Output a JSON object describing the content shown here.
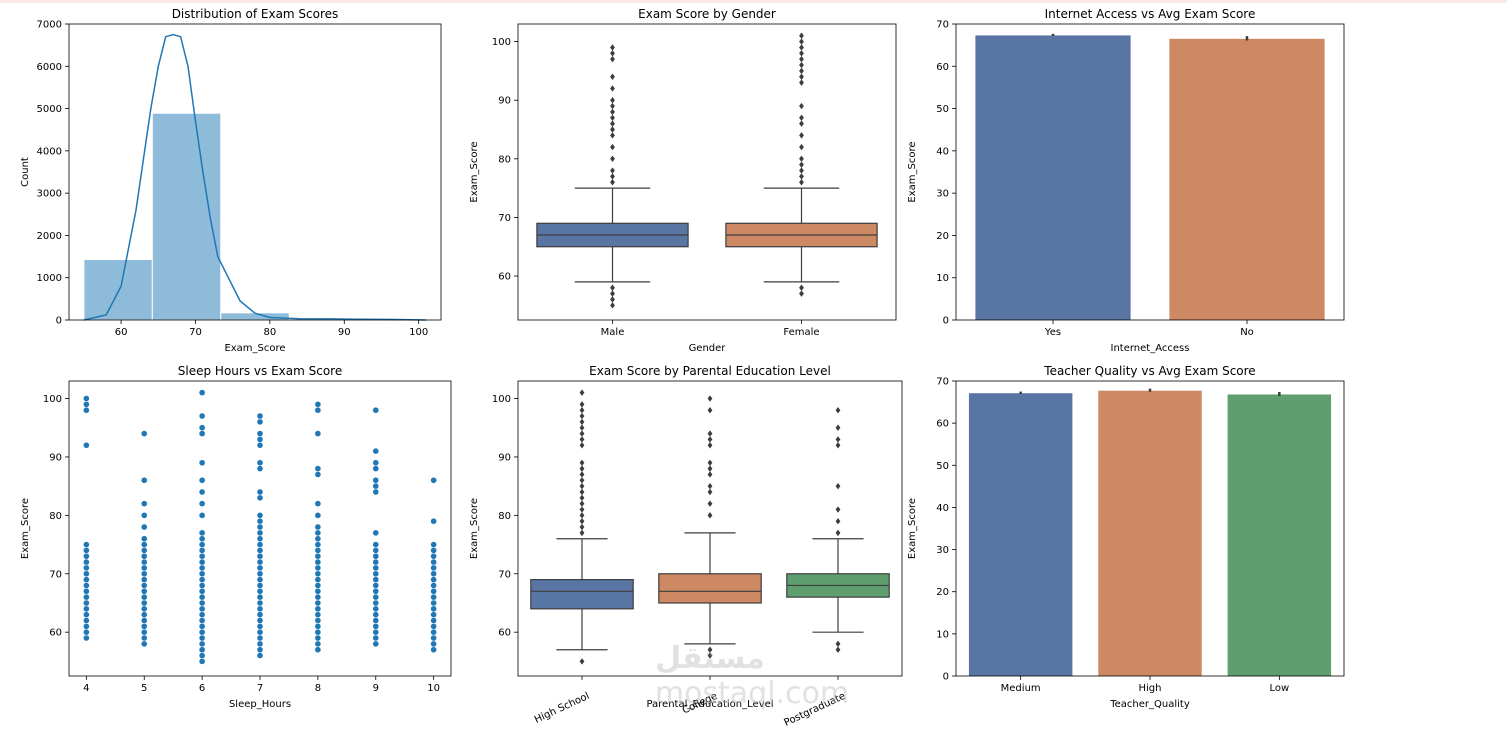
{
  "watermark": {
    "arabic": "مستقل",
    "latin": "mostaql.com"
  },
  "colors": {
    "blue": "#5875a4",
    "orange": "#cc8963",
    "green": "#5f9e6e",
    "hist": "#8fbbda",
    "kde": "#1f77b4",
    "scatter": "#1f77b4",
    "box_line": "#3d3d3d"
  },
  "chart_data": [
    {
      "type": "bar",
      "subtype": "histogram",
      "title": "Distribution of Exam Scores",
      "xlabel": "Exam_Score",
      "ylabel": "Count",
      "xlim": [
        53,
        103
      ],
      "ylim": [
        0,
        7000
      ],
      "xticks": [
        60,
        70,
        80,
        90,
        100
      ],
      "yticks": [
        0,
        1000,
        2000,
        3000,
        4000,
        5000,
        6000,
        7000
      ],
      "bins": [
        {
          "x0": 55,
          "x1": 64.2,
          "count": 1430
        },
        {
          "x0": 64.2,
          "x1": 73.4,
          "count": 4890
        },
        {
          "x0": 73.4,
          "x1": 82.6,
          "count": 170
        },
        {
          "x0": 82.6,
          "x1": 91.8,
          "count": 20
        },
        {
          "x0": 91.8,
          "x1": 101,
          "count": 20
        }
      ],
      "kde": {
        "x": [
          55,
          58,
          60,
          62,
          64,
          65,
          66,
          67,
          68,
          69,
          70,
          71,
          72,
          73,
          74,
          76,
          78,
          80,
          84,
          88,
          92,
          96,
          101
        ],
        "y": [
          0,
          120,
          800,
          2600,
          5000,
          6000,
          6700,
          6750,
          6700,
          6000,
          4700,
          3500,
          2400,
          1500,
          1150,
          450,
          160,
          60,
          30,
          25,
          20,
          15,
          0
        ]
      }
    },
    {
      "type": "box",
      "title": "Exam Score by Gender",
      "xlabel": "Gender",
      "ylabel": "Exam_Score",
      "ylim": [
        52.5,
        103
      ],
      "yticks": [
        60,
        70,
        80,
        90,
        100
      ],
      "categories": [
        "Male",
        "Female"
      ],
      "boxes": [
        {
          "q1": 65,
          "median": 67,
          "q3": 69,
          "whisker_low": 59,
          "whisker_high": 75,
          "outliers": [
            55,
            56,
            57,
            58,
            76,
            77,
            78,
            80,
            82,
            84,
            85,
            86,
            87,
            88,
            89,
            90,
            92,
            94,
            97,
            98,
            99
          ]
        },
        {
          "q1": 65,
          "median": 67,
          "q3": 69,
          "whisker_low": 59,
          "whisker_high": 75,
          "outliers": [
            57,
            58,
            76,
            77,
            78,
            79,
            80,
            82,
            84,
            86,
            87,
            89,
            93,
            94,
            95,
            96,
            97,
            98,
            99,
            100,
            101
          ]
        }
      ]
    },
    {
      "type": "bar",
      "title": "Internet Access vs Avg Exam Score",
      "xlabel": "Internet_Access",
      "ylabel": "Exam_Score",
      "ylim": [
        0,
        70
      ],
      "yticks": [
        0,
        10,
        20,
        30,
        40,
        50,
        60,
        70
      ],
      "categories": [
        "Yes",
        "No"
      ],
      "values": [
        67.3,
        66.5
      ],
      "errors": [
        0.15,
        0.4
      ]
    },
    {
      "type": "scatter",
      "title": "Sleep Hours vs Exam Score",
      "xlabel": "Sleep_Hours",
      "ylabel": "Exam_Score",
      "xlim": [
        3.7,
        10.3
      ],
      "ylim": [
        52.5,
        103
      ],
      "xticks": [
        4,
        5,
        6,
        7,
        8,
        9,
        10
      ],
      "yticks": [
        60,
        70,
        80,
        90,
        100
      ],
      "columns": [
        {
          "x": 4,
          "ymin": 59,
          "ymax": 75,
          "extra": [
            92,
            98,
            99,
            100
          ]
        },
        {
          "x": 5,
          "ymin": 58,
          "ymax": 76,
          "extra": [
            78,
            80,
            82,
            86,
            94
          ]
        },
        {
          "x": 6,
          "ymin": 55,
          "ymax": 77,
          "extra": [
            80,
            82,
            84,
            86,
            89,
            94,
            95,
            97,
            101
          ]
        },
        {
          "x": 7,
          "ymin": 56,
          "ymax": 80,
          "extra": [
            83,
            84,
            88,
            89,
            92,
            93,
            94,
            96,
            97
          ]
        },
        {
          "x": 8,
          "ymin": 57,
          "ymax": 78,
          "extra": [
            80,
            82,
            87,
            88,
            94,
            98,
            99
          ]
        },
        {
          "x": 9,
          "ymin": 58,
          "ymax": 75,
          "extra": [
            77,
            84,
            85,
            86,
            88,
            89,
            91,
            98
          ]
        },
        {
          "x": 10,
          "ymin": 57,
          "ymax": 75,
          "extra": [
            79,
            86
          ]
        }
      ]
    },
    {
      "type": "box",
      "title": "Exam Score by Parental Education Level",
      "xlabel": "Parental_Education_Level",
      "ylabel": "Exam_Score",
      "ylim": [
        52.5,
        103
      ],
      "yticks": [
        60,
        70,
        80,
        90,
        100
      ],
      "categories": [
        "High School",
        "College",
        "Postgraduate"
      ],
      "boxes": [
        {
          "q1": 64,
          "median": 67,
          "q3": 69,
          "whisker_low": 57,
          "whisker_high": 76,
          "outliers": [
            55,
            77,
            78,
            79,
            80,
            81,
            82,
            83,
            84,
            85,
            86,
            87,
            88,
            89,
            92,
            93,
            94,
            95,
            96,
            97,
            98,
            99,
            101
          ]
        },
        {
          "q1": 65,
          "median": 67,
          "q3": 70,
          "whisker_low": 58,
          "whisker_high": 77,
          "outliers": [
            56,
            57,
            80,
            82,
            84,
            85,
            87,
            88,
            89,
            92,
            93,
            94,
            98,
            100
          ]
        },
        {
          "q1": 66,
          "median": 68,
          "q3": 70,
          "whisker_low": 60,
          "whisker_high": 76,
          "outliers": [
            57,
            58,
            77,
            79,
            81,
            85,
            92,
            93,
            95,
            98
          ]
        }
      ]
    },
    {
      "type": "bar",
      "title": "Teacher Quality vs Avg Exam Score",
      "xlabel": "Teacher_Quality",
      "ylabel": "Exam_Score",
      "ylim": [
        0,
        70
      ],
      "yticks": [
        0,
        10,
        20,
        30,
        40,
        50,
        60,
        70
      ],
      "categories": [
        "Medium",
        "High",
        "Low"
      ],
      "values": [
        67.1,
        67.7,
        66.8
      ],
      "errors": [
        0.15,
        0.25,
        0.35
      ]
    }
  ]
}
